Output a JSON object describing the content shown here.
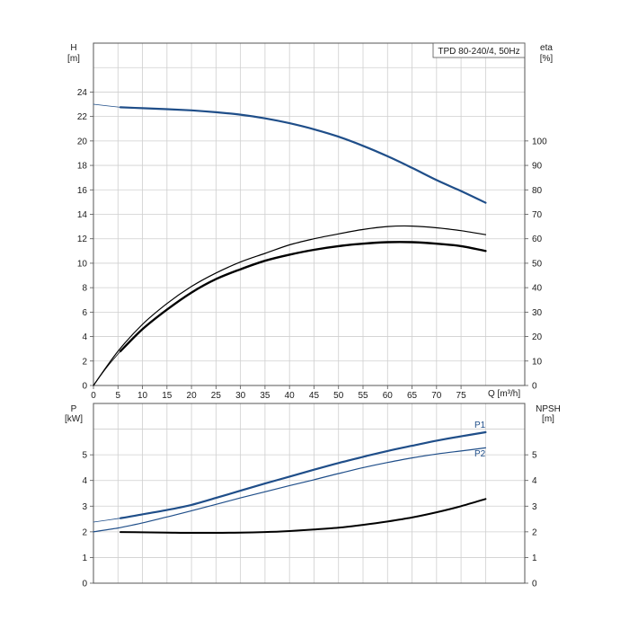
{
  "model_label": "TPD 80-240/4, 50Hz",
  "colors": {
    "blue": "#1f4e89",
    "black": "#000000",
    "grid": "#cfcfcf",
    "frame": "#555555"
  },
  "chart_data": [
    {
      "type": "line",
      "name": "performance",
      "left_axis": {
        "label": "H",
        "unit": "[m]",
        "range": [
          0,
          28
        ],
        "ticks": [
          0,
          2,
          4,
          6,
          8,
          10,
          12,
          14,
          16,
          18,
          20,
          22,
          24
        ],
        "tick_labels": [
          "0",
          "2",
          "4",
          "6",
          "8",
          "10",
          "12",
          "14",
          "16",
          "18",
          "20",
          "22",
          "24"
        ]
      },
      "right_axis": {
        "label": "eta",
        "unit": "[%]",
        "range": [
          0,
          140
        ],
        "ticks": [
          0,
          10,
          20,
          30,
          40,
          50,
          60,
          70,
          80,
          90,
          100
        ],
        "tick_labels": [
          "0",
          "10",
          "20",
          "30",
          "40",
          "50",
          "60",
          "70",
          "80",
          "90",
          "100"
        ]
      },
      "x_axis": {
        "label": "Q [m³/h]",
        "range": [
          0,
          88
        ],
        "ticks": [
          0,
          5,
          10,
          15,
          20,
          25,
          30,
          35,
          40,
          45,
          50,
          55,
          60,
          65,
          70,
          75
        ],
        "tick_labels": [
          "0",
          "5",
          "10",
          "15",
          "20",
          "25",
          "30",
          "35",
          "40",
          "45",
          "50",
          "55",
          "60",
          "65",
          "70",
          "75"
        ]
      },
      "grid": true,
      "series": [
        {
          "id": "H",
          "axis": "left",
          "color": "#1f4e89",
          "width": 2.2,
          "x": [
            5.5,
            10,
            15,
            20,
            25,
            30,
            35,
            40,
            45,
            50,
            55,
            60,
            65,
            70,
            75,
            80
          ],
          "y": [
            22.75,
            22.68,
            22.6,
            22.5,
            22.35,
            22.15,
            21.85,
            21.45,
            20.95,
            20.35,
            19.6,
            18.75,
            17.8,
            16.8,
            15.9,
            14.95
          ]
        },
        {
          "id": "H_ext",
          "axis": "left",
          "color": "#1f4e89",
          "width": 0.8,
          "x": [
            0,
            5.5
          ],
          "y": [
            23.0,
            22.75
          ]
        },
        {
          "id": "eta_total",
          "axis": "right",
          "color": "#000000",
          "width": 2.4,
          "x": [
            5.5,
            10,
            15,
            20,
            25,
            30,
            35,
            40,
            45,
            50,
            55,
            60,
            65,
            70,
            75,
            80
          ],
          "y": [
            14,
            23,
            31,
            38,
            43.5,
            47.5,
            51,
            53.5,
            55.5,
            57,
            58,
            58.6,
            58.6,
            58,
            57,
            55
          ]
        },
        {
          "id": "eta_total_ext",
          "axis": "right",
          "color": "#000000",
          "width": 0.8,
          "x": [
            0,
            2.75,
            5.5
          ],
          "y": [
            0,
            7.5,
            14
          ]
        },
        {
          "id": "eta_pump",
          "axis": "right",
          "color": "#000000",
          "width": 1.2,
          "x": [
            0,
            5,
            10,
            15,
            20,
            25,
            30,
            35,
            40,
            45,
            50,
            55,
            60,
            65,
            70,
            75,
            80
          ],
          "y": [
            0,
            14,
            25,
            33.5,
            40.5,
            46,
            50.5,
            54,
            57.5,
            60,
            62,
            63.8,
            65,
            65.2,
            64.5,
            63.3,
            61.7
          ]
        }
      ]
    },
    {
      "type": "line",
      "name": "power-npsh",
      "left_axis": {
        "label": "P",
        "unit": "[kW]",
        "range": [
          0,
          7
        ],
        "ticks": [
          0,
          1,
          2,
          3,
          4,
          5
        ],
        "tick_labels": [
          "0",
          "1",
          "2",
          "3",
          "4",
          "5"
        ]
      },
      "right_axis": {
        "label": "NPSH",
        "unit": "[m]",
        "range": [
          0,
          7
        ],
        "ticks": [
          0,
          1,
          2,
          3,
          4,
          5
        ],
        "tick_labels": [
          "0",
          "1",
          "2",
          "3",
          "4",
          "5"
        ]
      },
      "x_axis": {
        "range": [
          0,
          88
        ]
      },
      "grid": true,
      "series": [
        {
          "id": "P1",
          "name": "P1",
          "axis": "left",
          "color": "#1f4e89",
          "width": 2.2,
          "x": [
            5.5,
            10,
            15,
            20,
            25,
            30,
            35,
            40,
            45,
            50,
            55,
            60,
            65,
            70,
            75,
            80
          ],
          "y": [
            2.53,
            2.68,
            2.85,
            3.05,
            3.32,
            3.6,
            3.88,
            4.15,
            4.42,
            4.68,
            4.92,
            5.15,
            5.35,
            5.55,
            5.72,
            5.88
          ]
        },
        {
          "id": "P1_ext",
          "axis": "left",
          "color": "#1f4e89",
          "width": 0.8,
          "x": [
            0,
            5.5
          ],
          "y": [
            2.38,
            2.53
          ]
        },
        {
          "id": "P2",
          "name": "P2",
          "axis": "left",
          "color": "#1f4e89",
          "width": 1.2,
          "x": [
            0,
            5,
            10,
            15,
            20,
            25,
            30,
            35,
            40,
            45,
            50,
            55,
            60,
            65,
            70,
            75,
            80
          ],
          "y": [
            2.0,
            2.15,
            2.35,
            2.58,
            2.82,
            3.07,
            3.32,
            3.56,
            3.8,
            4.03,
            4.27,
            4.5,
            4.7,
            4.88,
            5.03,
            5.15,
            5.27
          ]
        },
        {
          "id": "NPSH",
          "axis": "right",
          "color": "#000000",
          "width": 2.0,
          "x": [
            5.5,
            10,
            15,
            20,
            25,
            30,
            35,
            40,
            45,
            50,
            55,
            60,
            65,
            70,
            75,
            80
          ],
          "y": [
            1.99,
            1.98,
            1.97,
            1.96,
            1.96,
            1.97,
            1.99,
            2.03,
            2.09,
            2.16,
            2.27,
            2.4,
            2.56,
            2.76,
            3.0,
            3.28
          ]
        }
      ]
    }
  ]
}
